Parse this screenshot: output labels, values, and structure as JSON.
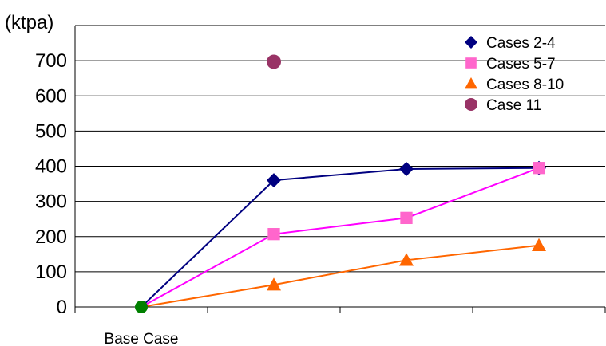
{
  "chart_data": {
    "type": "line",
    "ylabel": "(ktpa)",
    "categories": [
      "Base Case",
      "",
      "",
      ""
    ],
    "ylim": [
      0,
      800
    ],
    "yticks": [
      0,
      100,
      200,
      300,
      400,
      500,
      600,
      700
    ],
    "grid": true,
    "legend_position": "top-right",
    "series": [
      {
        "name": "Cases 2-4",
        "values": [
          0,
          360,
          392,
          395
        ],
        "color": "#000080",
        "marker": "diamond",
        "line": true
      },
      {
        "name": "Cases 5-7",
        "values": [
          0,
          207,
          253,
          395
        ],
        "color": "#ff00ff",
        "marker_color": "#ff66cc",
        "marker": "square",
        "line": true
      },
      {
        "name": "Cases 8-10",
        "values": [
          0,
          63,
          133,
          175
        ],
        "color": "#ff6600",
        "marker_color": "#ff6600",
        "marker": "triangle",
        "line": true
      },
      {
        "name": "Case 11",
        "values": [
          null,
          697,
          null,
          null
        ],
        "color": "#993366",
        "marker": "circle",
        "line": false
      }
    ],
    "base_marker_color": "#008000"
  }
}
